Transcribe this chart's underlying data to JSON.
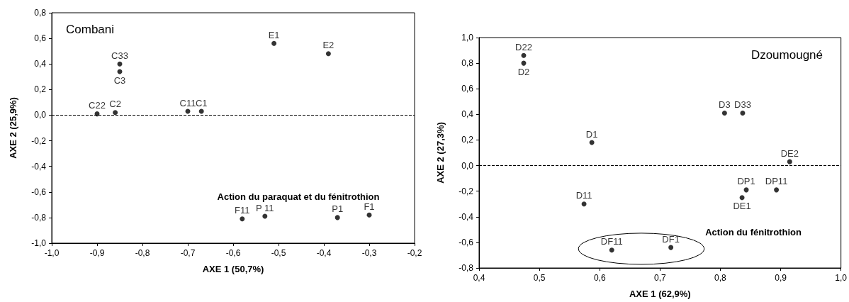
{
  "chart_data": [
    {
      "type": "scatter",
      "title": "Combani",
      "xlabel": "AXE 1 (50,7%)",
      "ylabel": "AXE 2 (25,9%)",
      "marker": "circle",
      "grid": false,
      "xlim": [
        -1.0,
        -0.2
      ],
      "xticks": [
        {
          "value": -1.0,
          "label": "-1,0"
        },
        {
          "value": -0.9,
          "label": "-0,9"
        },
        {
          "value": -0.8,
          "label": "-0,8"
        },
        {
          "value": -0.7,
          "label": "-0,7"
        },
        {
          "value": -0.6,
          "label": "-0,6"
        },
        {
          "value": -0.5,
          "label": "-0,5"
        },
        {
          "value": -0.4,
          "label": "-0,4"
        },
        {
          "value": -0.3,
          "label": "-0,3"
        },
        {
          "value": -0.2,
          "label": "-0,2"
        }
      ],
      "ylim": [
        -1.0,
        0.8
      ],
      "yticks": [
        {
          "value": -1.0,
          "label": "-1,0"
        },
        {
          "value": -0.8,
          "label": "-0,8"
        },
        {
          "value": -0.6,
          "label": "-0,6"
        },
        {
          "value": -0.4,
          "label": "-0,4"
        },
        {
          "value": -0.2,
          "label": "-0,2"
        },
        {
          "value": 0,
          "label": "0,0"
        },
        {
          "value": 0.2,
          "label": "0,2"
        },
        {
          "value": 0.4,
          "label": "0,4"
        },
        {
          "value": 0.6,
          "label": "0,6"
        },
        {
          "value": 0.8,
          "label": "0,8"
        }
      ],
      "series": [
        {
          "color": "#000000",
          "x": [
            -0.51,
            -0.39,
            -0.85,
            -0.85,
            -0.9,
            -0.86,
            -0.7,
            -0.67,
            -0.58,
            -0.53,
            -0.37,
            -0.3
          ],
          "values": [
            0.56,
            0.48,
            0.4,
            0.34,
            0.01,
            0.02,
            0.03,
            0.03,
            -0.81,
            -0.79,
            -0.8,
            -0.78
          ],
          "value_labels": [
            "E1",
            "E2",
            "C33",
            "C3",
            "C22",
            "C2",
            "C11",
            "C1",
            "F11",
            "P 11",
            "P1",
            "F1"
          ]
        }
      ],
      "ref_lines": [
        {
          "axis": "y",
          "value": 0,
          "line_style": "dashed",
          "color": "#000000"
        }
      ],
      "annotations": [
        "Action du paraquat et du fénitrothion"
      ]
    },
    {
      "type": "scatter",
      "title": "Dzoumougné",
      "xlabel": "AXE 1 (62,9%)",
      "ylabel": "AXE 2 (27,3%)",
      "marker": "circle",
      "grid": false,
      "xlim": [
        0.4,
        1.0
      ],
      "xticks": [
        {
          "value": 0.4,
          "label": "0,4"
        },
        {
          "value": 0.5,
          "label": "0,5"
        },
        {
          "value": 0.6,
          "label": "0,6"
        },
        {
          "value": 0.7,
          "label": "0,7"
        },
        {
          "value": 0.8,
          "label": "0,8"
        },
        {
          "value": 0.9,
          "label": "0,9"
        },
        {
          "value": 1.0,
          "label": "1,0"
        }
      ],
      "ylim": [
        -0.8,
        1.0
      ],
      "yticks": [
        {
          "value": -0.8,
          "label": "-0,8"
        },
        {
          "value": -0.6,
          "label": "-0,6"
        },
        {
          "value": -0.4,
          "label": "-0,4"
        },
        {
          "value": -0.2,
          "label": "-0,2"
        },
        {
          "value": 0,
          "label": "0,0"
        },
        {
          "value": 0.2,
          "label": "0,2"
        },
        {
          "value": 0.4,
          "label": "0,4"
        },
        {
          "value": 0.6,
          "label": "0,6"
        },
        {
          "value": 0.8,
          "label": "0,8"
        },
        {
          "value": 1.0,
          "label": "1,0"
        }
      ],
      "series": [
        {
          "color": "#000000",
          "x": [
            0.474,
            0.474,
            0.807,
            0.837,
            0.587,
            0.915,
            0.843,
            0.893,
            0.836,
            0.574,
            0.62,
            0.718
          ],
          "values": [
            0.86,
            0.8,
            0.41,
            0.41,
            0.18,
            0.03,
            -0.19,
            -0.19,
            -0.25,
            -0.3,
            -0.66,
            -0.64
          ],
          "value_labels": [
            "D22",
            "D2",
            "D3",
            "D33",
            "D1",
            "DE2",
            "DP1",
            "DP11",
            "DE1",
            "D11",
            "DF11",
            "DF1"
          ]
        }
      ],
      "ref_lines": [
        {
          "axis": "y",
          "value": 0,
          "line_style": "dashed",
          "color": "#000000"
        }
      ],
      "annotations": [
        "Action du fénitrothion"
      ]
    }
  ]
}
